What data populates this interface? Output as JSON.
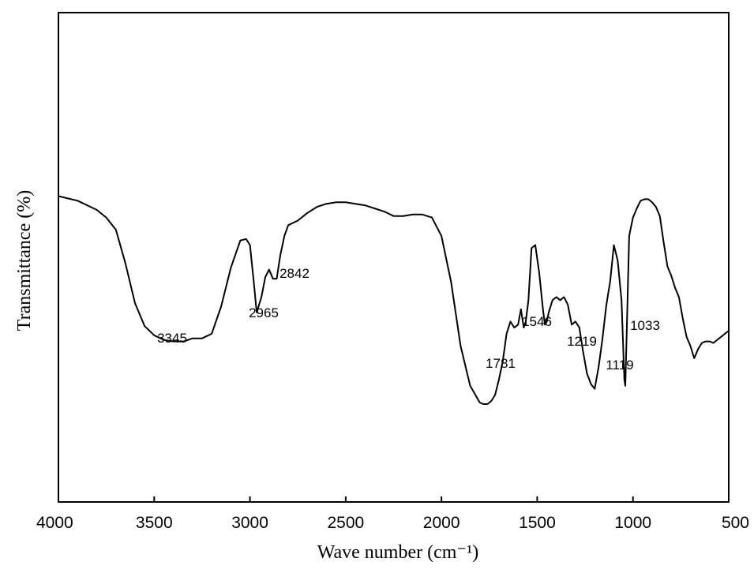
{
  "chart_data": {
    "type": "line",
    "xlabel": "Wave number (cm⁻¹)",
    "ylabel": "Transmittance (%)",
    "xlim": [
      4000,
      500
    ],
    "x_reversed": true,
    "y_ticks_shown": false,
    "grid": false,
    "legend": "none",
    "x_ticks": [
      4000,
      3500,
      3000,
      2500,
      2000,
      1500,
      1000,
      500
    ],
    "x_tick_labels": [
      "4000",
      "3500",
      "3000",
      "2500",
      "2000",
      "1500",
      "1000",
      "500"
    ],
    "series": [
      {
        "color": "#000000",
        "x": [
          4000,
          3900,
          3800,
          3750,
          3700,
          3650,
          3600,
          3550,
          3500,
          3450,
          3400,
          3345,
          3300,
          3250,
          3200,
          3150,
          3100,
          3050,
          3020,
          3000,
          2980,
          2965,
          2940,
          2920,
          2900,
          2880,
          2860,
          2842,
          2820,
          2800,
          2750,
          2700,
          2650,
          2600,
          2550,
          2500,
          2450,
          2400,
          2350,
          2300,
          2250,
          2200,
          2150,
          2100,
          2050,
          2000,
          1950,
          1900,
          1850,
          1800,
          1781,
          1760,
          1740,
          1720,
          1700,
          1680,
          1660,
          1640,
          1620,
          1600,
          1585,
          1570,
          1560,
          1546,
          1530,
          1510,
          1490,
          1470,
          1460,
          1450,
          1440,
          1420,
          1400,
          1380,
          1360,
          1340,
          1320,
          1300,
          1280,
          1260,
          1240,
          1219,
          1200,
          1180,
          1160,
          1140,
          1130,
          1119,
          1100,
          1080,
          1060,
          1045,
          1040,
          1033,
          1020,
          1000,
          980,
          960,
          940,
          920,
          900,
          880,
          860,
          840,
          820,
          800,
          780,
          760,
          740,
          720,
          700,
          680,
          660,
          640,
          620,
          600,
          580,
          560,
          540,
          520,
          500
        ],
        "values": [
          100,
          98.5,
          95.5,
          93,
          89,
          78,
          65,
          57.5,
          54.5,
          53,
          52.5,
          52.5,
          53.5,
          53.5,
          55,
          64,
          76.5,
          85.5,
          86,
          84,
          72,
          62,
          67,
          73.5,
          76,
          73,
          73,
          80.5,
          87,
          90.5,
          92,
          94.5,
          96.5,
          97.5,
          98,
          98,
          97.5,
          97,
          96,
          95,
          93.5,
          93.5,
          94,
          94,
          93,
          87,
          72,
          51,
          38,
          32.5,
          32,
          32,
          33,
          35,
          40,
          46,
          55,
          59,
          57,
          58,
          63,
          57,
          59,
          66,
          83,
          84,
          75,
          63,
          58,
          59,
          62,
          66,
          67,
          66,
          67,
          64.5,
          58,
          59,
          57,
          49,
          42,
          38.5,
          37,
          44,
          53,
          64,
          68,
          72,
          84,
          79,
          66,
          40,
          38,
          54.5,
          87,
          93,
          96,
          98.5,
          99,
          99,
          98,
          96.5,
          93.5,
          85,
          77,
          74,
          70,
          67,
          60,
          54,
          51,
          47,
          50,
          52,
          52.5,
          52.5,
          52,
          53,
          54,
          55,
          56
        ]
      }
    ],
    "annotations": [
      "3345",
      "2965",
      "2842",
      "1781",
      "1546",
      "1219",
      "1119",
      "1033"
    ]
  }
}
